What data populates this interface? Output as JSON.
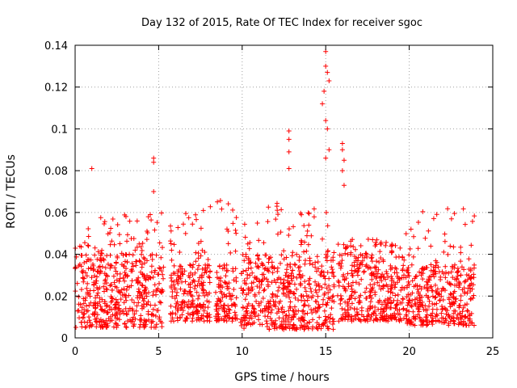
{
  "chart_data": {
    "type": "scatter",
    "title": "Day 132 of 2015, Rate Of TEC Index for receiver sgoc",
    "xlabel": "GPS time / hours",
    "ylabel": "ROTI / TECUs",
    "xlim": [
      0,
      25
    ],
    "ylim": [
      0,
      0.14
    ],
    "xticks": [
      0,
      5,
      10,
      15,
      20,
      25
    ],
    "xtick_labels": [
      "0",
      "5",
      "10",
      "15",
      "20",
      "25"
    ],
    "yticks": [
      0,
      0.02,
      0.04,
      0.06,
      0.08,
      0.1,
      0.12,
      0.14
    ],
    "ytick_labels": [
      "0",
      "0.02",
      "0.04",
      "0.06",
      "0.08",
      "0.1",
      "0.12",
      "0.14"
    ],
    "grid": true,
    "marker": "+",
    "color": "#ff0000",
    "data_segments": [
      {
        "start": 0.0,
        "end": 5.3,
        "base_min": 0.005,
        "base_max": 0.04,
        "peak": 0.06
      },
      {
        "start": 5.7,
        "end": 8.1,
        "base_min": 0.008,
        "base_max": 0.035,
        "peak": 0.063
      },
      {
        "start": 8.4,
        "end": 9.7,
        "base_min": 0.008,
        "base_max": 0.035,
        "peak": 0.067
      },
      {
        "start": 9.9,
        "end": 15.5,
        "base_min": 0.004,
        "base_max": 0.04,
        "peak": 0.065
      },
      {
        "start": 15.7,
        "end": 19.7,
        "base_min": 0.008,
        "base_max": 0.04,
        "peak": 0.048
      },
      {
        "start": 19.8,
        "end": 23.9,
        "base_min": 0.006,
        "base_max": 0.035,
        "peak": 0.064
      }
    ],
    "notable_points": [
      {
        "x": 1.0,
        "y": 0.081
      },
      {
        "x": 4.7,
        "y": 0.086
      },
      {
        "x": 4.7,
        "y": 0.084
      },
      {
        "x": 4.7,
        "y": 0.07
      },
      {
        "x": 12.8,
        "y": 0.099
      },
      {
        "x": 12.8,
        "y": 0.095
      },
      {
        "x": 12.8,
        "y": 0.089
      },
      {
        "x": 12.8,
        "y": 0.081
      },
      {
        "x": 14.8,
        "y": 0.112
      },
      {
        "x": 14.9,
        "y": 0.118
      },
      {
        "x": 15.0,
        "y": 0.137
      },
      {
        "x": 15.0,
        "y": 0.13
      },
      {
        "x": 15.1,
        "y": 0.127
      },
      {
        "x": 15.2,
        "y": 0.123
      },
      {
        "x": 15.0,
        "y": 0.104
      },
      {
        "x": 15.1,
        "y": 0.1
      },
      {
        "x": 15.2,
        "y": 0.09
      },
      {
        "x": 15.0,
        "y": 0.086
      },
      {
        "x": 16.0,
        "y": 0.093
      },
      {
        "x": 16.0,
        "y": 0.09
      },
      {
        "x": 16.1,
        "y": 0.085
      },
      {
        "x": 16.0,
        "y": 0.08
      },
      {
        "x": 16.1,
        "y": 0.073
      }
    ]
  }
}
